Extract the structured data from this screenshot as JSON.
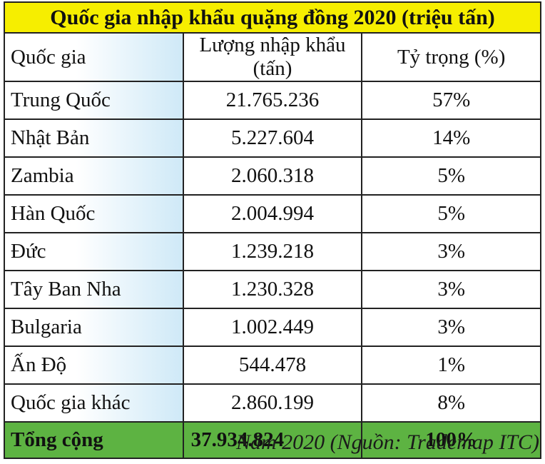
{
  "title": "Quốc gia nhập khẩu  quặng đồng 2020 (triệu tấn)",
  "headers": [
    "Quốc gia",
    "Lượng nhập khẩu (tấn)",
    "Tỷ trọng (%)"
  ],
  "rows": [
    {
      "country": "Trung Quốc",
      "amount": "21.765.236",
      "share": "57%"
    },
    {
      "country": "Nhật Bản",
      "amount": "5.227.604",
      "share": "14%"
    },
    {
      "country": "Zambia",
      "amount": "2.060.318",
      "share": "5%"
    },
    {
      "country": "Hàn Quốc",
      "amount": "2.004.994",
      "share": "5%"
    },
    {
      "country": "Đức",
      "amount": "1.239.218",
      "share": "3%"
    },
    {
      "country": "Tây Ban Nha",
      "amount": "1.230.328",
      "share": "3%"
    },
    {
      "country": "Bulgaria",
      "amount": "1.002.449",
      "share": "3%"
    },
    {
      "country": "Ấn Độ",
      "amount": "544.478",
      "share": "1%"
    },
    {
      "country": "Quốc gia khác",
      "amount": "2.860.199",
      "share": "8%"
    }
  ],
  "total": {
    "label": "Tổng cộng",
    "amount": "37.934.824",
    "share": "100%"
  },
  "source": "Năm 2020 (Nguồn: Trademap ITC)",
  "colors": {
    "title_bg": "#f6ee00",
    "total_bg": "#5db342",
    "first_col_tint": "#cfe9f7"
  }
}
